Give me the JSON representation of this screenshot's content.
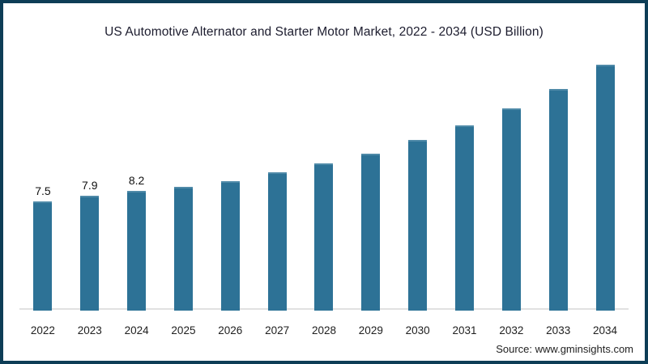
{
  "title": "US Automotive Alternator and Starter Motor Market, 2022 - 2034 (USD Billion)",
  "source_text": "Source: www.gminsights.com",
  "colors": {
    "bar": "#2d7296",
    "bar_top": "#4f8aa8",
    "frame": "#0d3d56",
    "axis_line": "#e1e1e1"
  },
  "chart_data": {
    "type": "bar",
    "title": "US Automotive Alternator and Starter Motor Market, 2022 - 2034 (USD Billion)",
    "categories": [
      "2022",
      "2023",
      "2024",
      "2025",
      "2026",
      "2027",
      "2028",
      "2029",
      "2030",
      "2031",
      "2032",
      "2033",
      "2034"
    ],
    "values": [
      7.5,
      7.9,
      8.2,
      8.5,
      8.9,
      9.5,
      10.1,
      10.8,
      11.7,
      12.7,
      13.9,
      15.2,
      16.9
    ],
    "data_labels": [
      "7.5",
      "7.9",
      "8.2",
      "",
      "",
      "",
      "",
      "",
      "",
      "",
      "",
      "",
      ""
    ],
    "xlabel": "",
    "ylabel": "",
    "ylim": [
      0,
      17.5
    ],
    "grid": false,
    "legend": false,
    "y_axis_shown": false,
    "units": "USD Billion"
  }
}
